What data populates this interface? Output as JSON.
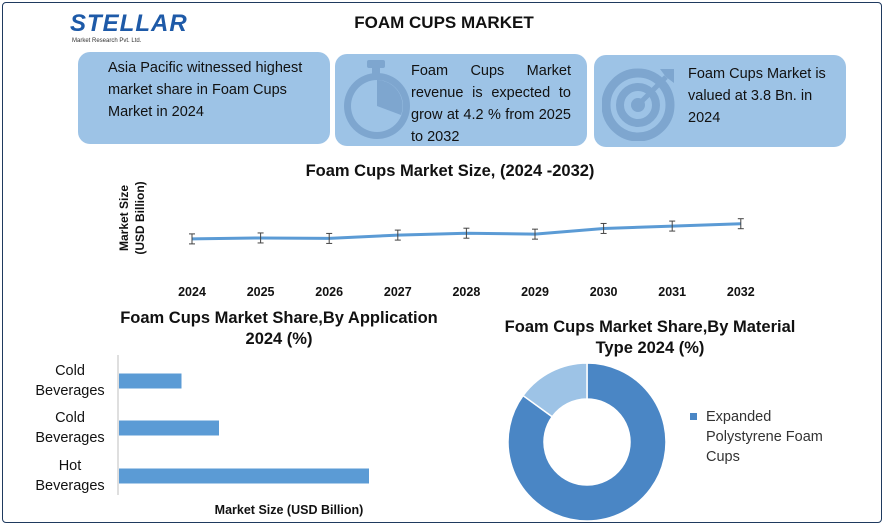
{
  "header": {
    "brand": "STELLAR",
    "brand_tagline": "Market Research Pvt. Ltd.",
    "title": "FOAM CUPS MARKET"
  },
  "cards": [
    {
      "text": "Asia Pacific witnessed highest market share in Foam Cups Market in 2024",
      "icon": ""
    },
    {
      "text": "Foam Cups Market revenue is expected to grow at 4.2 % from 2025 to 2032",
      "icon": "stopwatch-icon"
    },
    {
      "text": "Foam Cups Market is valued at 3.8 Bn. in 2024",
      "icon": "target-icon"
    }
  ],
  "colors": {
    "card": "#9dc3e6",
    "series": "#5b9bd5",
    "donut_main": "#4a86c5",
    "donut_light": "#9dc3e6"
  },
  "chart_data": [
    {
      "type": "line",
      "title": "Foam Cups Market Size, (2024 -2032)",
      "ylabel": "Market Size (USD Billion)",
      "xlabel": "",
      "x": [
        "2024",
        "2025",
        "2026",
        "2027",
        "2028",
        "2029",
        "2030",
        "2031",
        "2032"
      ],
      "values": [
        3.8,
        3.9,
        3.85,
        4.2,
        4.4,
        4.3,
        4.9,
        5.15,
        5.4
      ],
      "ylim": [
        0,
        10
      ],
      "error_bars": true,
      "grid": false
    },
    {
      "type": "bar",
      "orientation": "horizontal",
      "title": "Foam Cups Market Share,By Application 2024 (%)",
      "xlabel": "Market Size (USD Billion)",
      "categories": [
        "Cold Beverages",
        "Cold Beverages",
        "Hot Beverages"
      ],
      "values": [
        0.25,
        0.4,
        1.0
      ],
      "xlim": [
        0,
        1.1
      ]
    },
    {
      "type": "pie",
      "donut": true,
      "title": "Foam Cups Market Share,By Material Type 2024 (%)",
      "legend_position": "right",
      "legend": [
        "Expanded Polystyrene Foam Cups"
      ],
      "slices": [
        {
          "name": "Expanded Polystyrene Foam Cups",
          "value": 85
        },
        {
          "name": "",
          "value": 15
        }
      ]
    }
  ]
}
